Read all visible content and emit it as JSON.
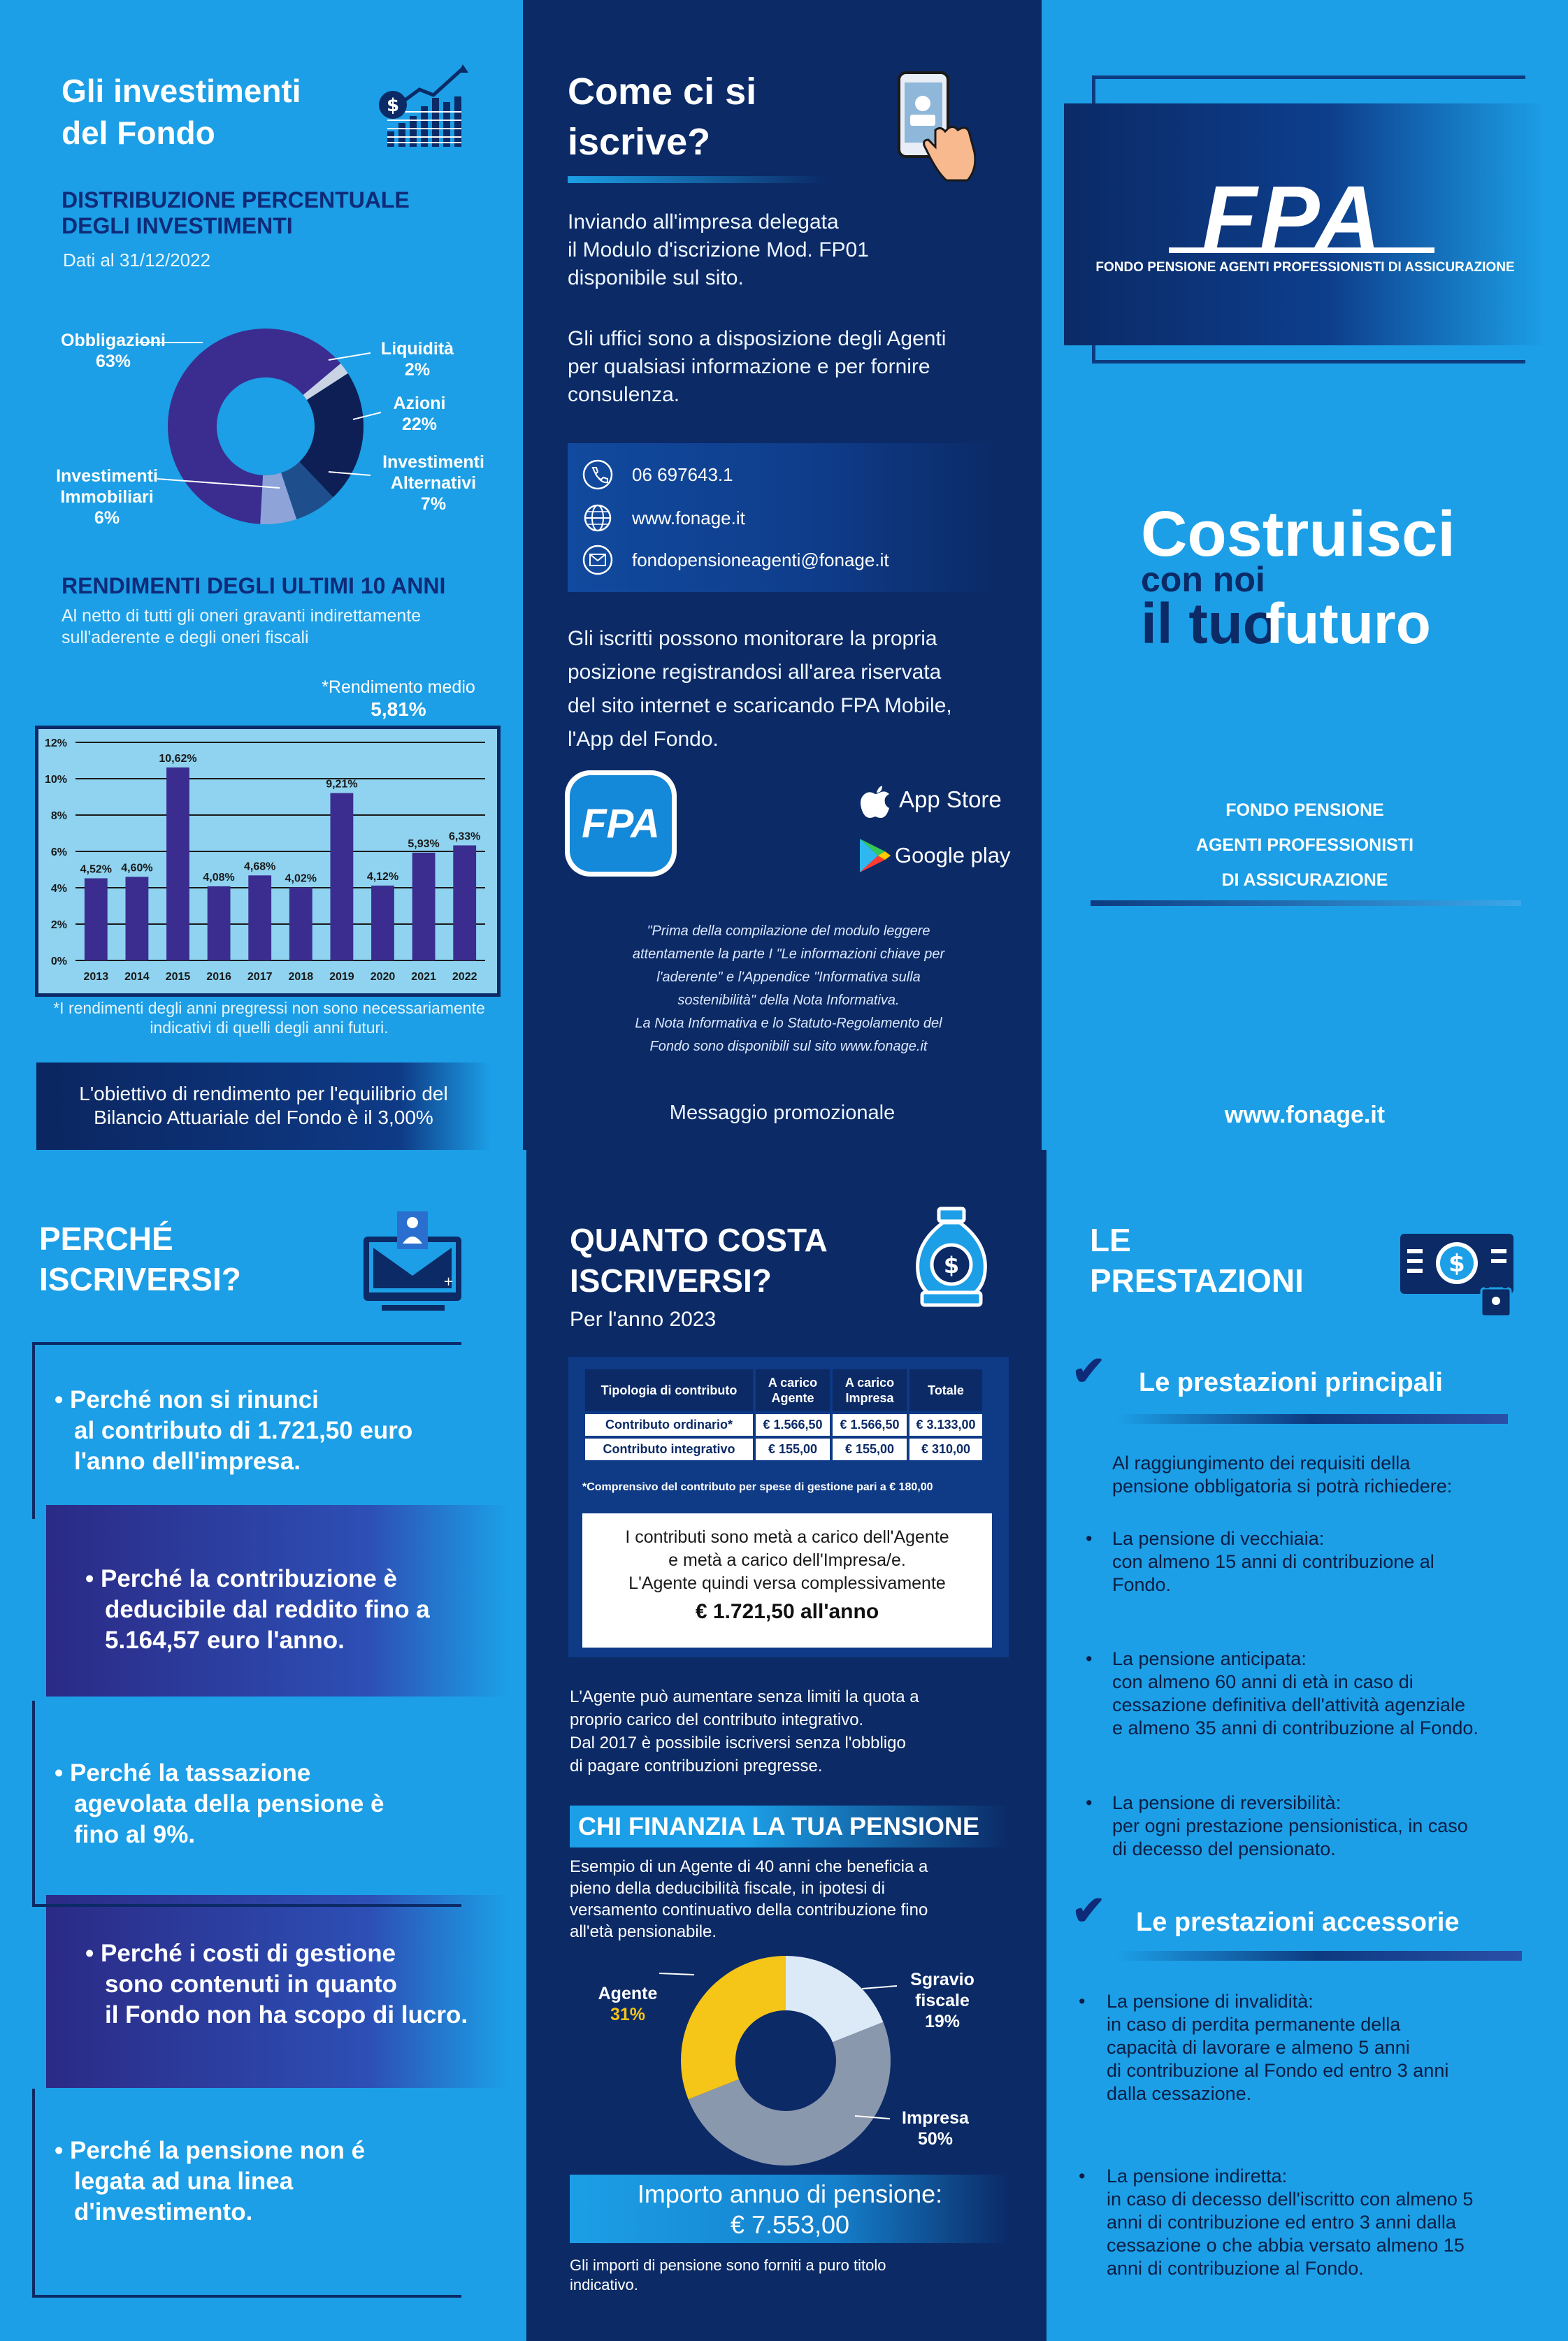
{
  "panel_investments": {
    "title_l1": "Gli investimenti",
    "title_l2": "del Fondo",
    "dist_title_l1": "DISTRIBUZIONE PERCENTUALE",
    "dist_title_l2": "DEGLI INVESTIMENTI",
    "dist_date": "Dati al 31/12/2022",
    "rend_title": "RENDIMENTI DEGLI ULTIMI 10 ANNI",
    "rend_sub_l1": "Al netto di tutti gli oneri gravanti indirettamente",
    "rend_sub_l2": "sull'aderente e degli oneri fiscali",
    "avg_label": "*Rendimento medio",
    "avg_value": "5,81%",
    "bar_note_l1": "*I rendimenti degli anni pregressi non sono necessariamente",
    "bar_note_l2": "indicativi di quelli degli anni futuri.",
    "goal_l1": "L'obiettivo di rendimento per l'equilibrio del",
    "goal_l2": "Bilancio Attuariale del Fondo è il 3,00%"
  },
  "chart_data": [
    {
      "type": "pie",
      "title": "DISTRIBUZIONE PERCENTUALE DEGLI INVESTIMENTI",
      "labels": [
        "Obbligazioni",
        "Liquidità",
        "Azioni",
        "Investimenti Alternativi",
        "Investimenti Immobiliari"
      ],
      "label_pct": [
        "63%",
        "2%",
        "22%",
        "7%",
        "6%"
      ],
      "values": [
        63,
        2,
        22,
        7,
        6
      ],
      "colors": [
        "#3b2d8f",
        "#c9d3e3",
        "#0d1f55",
        "#1e4f8c",
        "#8ea3d8"
      ]
    },
    {
      "type": "bar",
      "title": "RENDIMENTI DEGLI ULTIMI 10 ANNI",
      "categories": [
        "2013",
        "2014",
        "2015",
        "2016",
        "2017",
        "2018",
        "2019",
        "2020",
        "2021",
        "2022"
      ],
      "values": [
        4.52,
        4.6,
        10.62,
        4.08,
        4.68,
        4.02,
        9.21,
        4.12,
        5.93,
        6.33
      ],
      "value_labels": [
        "4,52%",
        "4,60%",
        "10,62%",
        "4,08%",
        "4,68%",
        "4,02%",
        "9,21%",
        "4,12%",
        "5,93%",
        "6,33%"
      ],
      "ylim": [
        0,
        12
      ],
      "yticks": [
        "0%",
        "2%",
        "4%",
        "6%",
        "8%",
        "10%",
        "12%"
      ],
      "grid": true,
      "bar_color": "#3b2d8f",
      "background": "#8fd3f0"
    },
    {
      "type": "pie",
      "title": "CHI FINANZIA LA TUA PENSIONE",
      "labels": [
        "Agente",
        "Sgravio fiscale",
        "Impresa"
      ],
      "label_pct": [
        "31%",
        "19%",
        "50%"
      ],
      "values": [
        31,
        19,
        50
      ],
      "colors": [
        "#f5c518",
        "#dceaf7",
        "#8a98ad"
      ]
    }
  ],
  "panel_enroll": {
    "title_l1": "Come ci si",
    "title_l2": "iscrive?",
    "intro": [
      "Inviando all'impresa delegata",
      "il Modulo d'iscrizione Mod. FP01",
      "disponibile sul sito."
    ],
    "offices": [
      "Gli uffici sono a disposizione degli Agenti",
      "per qualsiasi informazione e per fornire",
      "consulenza."
    ],
    "phone": "06 697643.1",
    "website": "www.fonage.it",
    "email": "fondopensioneagenti@fonage.it",
    "monitor": [
      "Gli iscritti possono monitorare la propria",
      "posizione registrandosi all'area riservata",
      "del sito internet e scaricando FPA Mobile,",
      "l'App del Fondo."
    ],
    "app_logo": "FPA",
    "app_store": "App Store",
    "google_play": "Google play",
    "disclaimer": [
      "\"Prima della compilazione del modulo leggere",
      "attentamente la parte I \"Le informazioni chiave per",
      "l'aderente\" e l'Appendice \"Informativa sulla",
      "sostenibilità\" della Nota Informativa.",
      "La Nota Informativa e lo Statuto-Regolamento del",
      "Fondo sono disponibili sul sito www.fonage.it"
    ],
    "promo": "Messaggio promozionale"
  },
  "panel_cover": {
    "logo": "FPA",
    "logo_sub": "FONDO PENSIONE AGENTI PROFESSIONISTI DI ASSICURAZIONE",
    "slogan_1": "Costruisci",
    "slogan_2": "con noi",
    "slogan_3a": "il tuo",
    "slogan_3b": "futuro",
    "fund_l1": "FONDO PENSIONE",
    "fund_l2": "AGENTI PROFESSIONISTI",
    "fund_l3": "DI ASSICURAZIONE",
    "site": "www.fonage.it"
  },
  "panel_why": {
    "title_l1": "PERCHÉ",
    "title_l2": "ISCRIVERSI?",
    "reasons": [
      [
        "• Perché non si rinunci",
        "al contributo di 1.721,50 euro",
        "l'anno dell'impresa."
      ],
      [
        "• Perché la contribuzione è",
        "deducibile dal reddito fino a",
        "5.164,57 euro l'anno."
      ],
      [
        "• Perché la tassazione",
        "agevolata della pensione è",
        "fino al 9%."
      ],
      [
        "• Perché i costi di gestione",
        "sono contenuti in quanto",
        "il Fondo non ha scopo di lucro."
      ],
      [
        "• Perché la pensione non é",
        "legata ad una linea",
        "d'investimento."
      ]
    ]
  },
  "panel_cost": {
    "title_l1": "QUANTO COSTA",
    "title_l2": "ISCRIVERSI?",
    "year": "Per l'anno 2023",
    "table_headers": [
      "Tipologia di contributo",
      "A carico Agente",
      "A carico Impresa",
      "Totale"
    ],
    "table_rows": [
      [
        "Contributo ordinario*",
        "€ 1.566,50",
        "€ 1.566,50",
        "€ 3.133,00"
      ],
      [
        "Contributo integrativo",
        "€ 155,00",
        "€ 155,00",
        "€ 310,00"
      ]
    ],
    "table_note": "*Comprensivo del contributo per spese di gestione pari a € 180,00",
    "msg_l1": "I contributi sono metà a carico dell'Agente",
    "msg_l2": "e metà a carico dell'Impresa/e.",
    "msg_l3": "L'Agente quindi versa complessivamente",
    "msg_amount": "€ 1.721,50 all'anno",
    "para1": [
      "L'Agente può aumentare senza limiti la quota a",
      "proprio carico del contributo integrativo.",
      "Dal 2017 è possibile iscriversi senza l'obbligo",
      "di pagare contribuzioni pregresse."
    ],
    "chi_title": "CHI FINANZIA LA TUA PENSIONE",
    "example": [
      "Esempio di un Agente di 40 anni che beneficia a",
      "pieno della deducibilità fiscale, in ipotesi di",
      "versamento continuativo della contribuzione fino",
      "all'età pensionabile."
    ],
    "amount_l1": "Importo annuo di pensione:",
    "amount_l2": "€ 7.553,00",
    "foot": [
      "Gli importi di pensione sono forniti a puro titolo",
      "indicativo."
    ]
  },
  "panel_benefits": {
    "title_l1": "LE",
    "title_l2": "PRESTAZIONI",
    "main_title": "Le prestazioni principali",
    "main_intro": [
      "Al raggiungimento dei requisiti della",
      "pensione obbligatoria si potrà richiedere:"
    ],
    "main_items": [
      [
        "La pensione di vecchiaia:",
        "con almeno 15 anni di contribuzione al",
        "Fondo."
      ],
      [
        "La pensione anticipata:",
        "con almeno 60 anni di età in caso di",
        "cessazione definitiva dell'attività agenziale",
        "e almeno 35 anni di contribuzione al Fondo."
      ],
      [
        "La pensione di reversibilità:",
        "per ogni prestazione pensionistica, in caso",
        "di decesso del pensionato."
      ]
    ],
    "acc_title": "Le prestazioni accessorie",
    "acc_items": [
      [
        "La pensione di invalidità:",
        "in caso di perdita permanente della",
        "capacità di lavorare e almeno 5 anni",
        "di contribuzione al Fondo ed entro 3 anni",
        "dalla cessazione."
      ],
      [
        "La pensione indiretta:",
        "in caso di decesso dell'iscritto con almeno 5",
        "anni di contribuzione ed entro 3 anni dalla",
        "cessazione o che abbia versato almeno 15",
        "anni di contribuzione al Fondo."
      ]
    ]
  },
  "colors": {
    "light_blue": "#1c9fe6",
    "navy": "#0b2a66",
    "purple": "#3b2d8f",
    "yellow": "#f5c518"
  }
}
